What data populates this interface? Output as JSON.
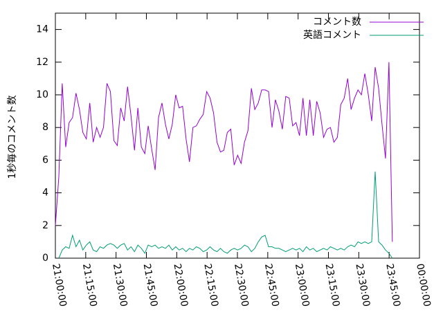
{
  "chart_data": {
    "type": "line",
    "y_label": "1秒毎のコメント数",
    "x": [
      "21:00:00",
      "21:01:42",
      "21:03:24",
      "21:05:06",
      "21:06:48",
      "21:08:30",
      "21:10:12",
      "21:11:54",
      "21:13:36",
      "21:15:18",
      "21:17:00",
      "21:18:42",
      "21:20:24",
      "21:22:06",
      "21:23:48",
      "21:25:30",
      "21:27:12",
      "21:28:54",
      "21:30:36",
      "21:32:18",
      "21:34:00",
      "21:35:42",
      "21:37:24",
      "21:39:06",
      "21:40:48",
      "21:42:30",
      "21:44:12",
      "21:45:54",
      "21:47:36",
      "21:49:18",
      "21:51:00",
      "21:52:42",
      "21:54:24",
      "21:56:06",
      "21:57:48",
      "21:59:30",
      "22:01:12",
      "22:02:54",
      "22:04:36",
      "22:06:18",
      "22:08:00",
      "22:09:42",
      "22:11:24",
      "22:13:06",
      "22:14:48",
      "22:16:30",
      "22:18:12",
      "22:19:54",
      "22:21:36",
      "22:23:18",
      "22:25:00",
      "22:26:42",
      "22:28:24",
      "22:30:06",
      "22:31:48",
      "22:33:30",
      "22:35:12",
      "22:36:54",
      "22:38:36",
      "22:40:18",
      "22:42:00",
      "22:43:42",
      "22:45:24",
      "22:47:06",
      "22:48:48",
      "22:50:30",
      "22:52:12",
      "22:53:54",
      "22:55:36",
      "22:57:18",
      "22:59:00",
      "23:00:42",
      "23:02:24",
      "23:04:06",
      "23:05:48",
      "23:07:30",
      "23:09:12",
      "23:10:54",
      "23:12:36",
      "23:14:18",
      "23:16:00",
      "23:17:42",
      "23:19:24",
      "23:21:06",
      "23:22:48",
      "23:24:30",
      "23:26:12",
      "23:27:54",
      "23:29:36",
      "23:31:18",
      "23:33:00",
      "23:34:42",
      "23:36:24",
      "23:38:06",
      "23:39:48",
      "23:41:30",
      "23:43:12",
      "23:44:54",
      "23:46:36"
    ],
    "series": [
      {
        "name": "コメント数",
        "color": "#9400d3",
        "values": [
          2,
          5,
          10.7,
          6.8,
          8.3,
          8.6,
          10.1,
          9.1,
          7.7,
          7.3,
          9.5,
          7.1,
          8.0,
          7.4,
          8.0,
          10.7,
          10.2,
          7.2,
          6.9,
          9.2,
          8.4,
          10.5,
          8.7,
          6.6,
          9.2,
          6.8,
          6.4,
          8.1,
          6.7,
          5.4,
          8.6,
          9.5,
          8.2,
          7.3,
          8.2,
          10.0,
          9.2,
          9.3,
          7.3,
          5.9,
          8.0,
          8.1,
          8.5,
          8.8,
          10.2,
          9.8,
          8.9,
          7.1,
          6.5,
          6.6,
          7.7,
          7.9,
          5.7,
          6.3,
          5.8,
          7.1,
          7.8,
          10.4,
          9.1,
          9.5,
          10.3,
          10.3,
          10.2,
          8.0,
          9.7,
          9.0,
          7.9,
          9.9,
          9.8,
          8.1,
          8.3,
          7.5,
          9.8,
          7.5,
          9.7,
          7.5,
          9.6,
          8.9,
          7.4,
          7.9,
          8.0,
          7.1,
          7.4,
          9.4,
          9.8,
          11.0,
          9.1,
          9.8,
          10.3,
          10.0,
          11.3,
          10.0,
          8.4,
          11.7,
          10.4,
          8.2,
          6.1,
          12.0,
          1.0
        ]
      },
      {
        "name": "英語コメント",
        "color": "#009e73",
        "values": [
          null,
          0,
          0.5,
          0.7,
          0.6,
          1.4,
          0.7,
          1.1,
          0.5,
          0.8,
          1.0,
          0.5,
          0.4,
          0.7,
          0.6,
          0.8,
          0.9,
          0.8,
          0.6,
          0.8,
          0.9,
          0.5,
          0.7,
          0.4,
          0.8,
          0.6,
          0.3,
          0.8,
          0.7,
          0.8,
          0.6,
          0.7,
          0.6,
          0.8,
          0.5,
          0.7,
          0.5,
          0.6,
          0.4,
          0.6,
          0.5,
          0.7,
          0.6,
          0.4,
          0.5,
          0.7,
          0.5,
          0.4,
          0.6,
          0.4,
          0.3,
          0.5,
          0.6,
          0.5,
          0.6,
          0.8,
          0.7,
          0.4,
          0.6,
          1.0,
          1.3,
          1.4,
          0.7,
          0.7,
          0.6,
          0.6,
          0.5,
          0.4,
          0.5,
          0.6,
          0.5,
          0.6,
          0.4,
          0.7,
          0.5,
          0.6,
          0.4,
          0.5,
          0.6,
          0.5,
          0.7,
          0.6,
          0.5,
          0.6,
          0.5,
          0.7,
          0.8,
          0.7,
          1.0,
          0.9,
          1.0,
          0.9,
          1.0,
          5.3,
          1.0,
          0.8,
          0.5,
          0.3,
          0
        ]
      }
    ],
    "xlim": [
      "21:00:00",
      "00:00:00"
    ],
    "xticks": [
      "21:00:00",
      "21:15:00",
      "21:30:00",
      "21:45:00",
      "22:00:00",
      "22:15:00",
      "22:30:00",
      "22:45:00",
      "23:00:00",
      "23:15:00",
      "23:30:00",
      "23:45:00",
      "00:00:00"
    ],
    "ylim": [
      0,
      15
    ],
    "yticks": [
      0,
      2,
      4,
      6,
      8,
      10,
      12,
      14
    ],
    "legend": "top-right"
  }
}
